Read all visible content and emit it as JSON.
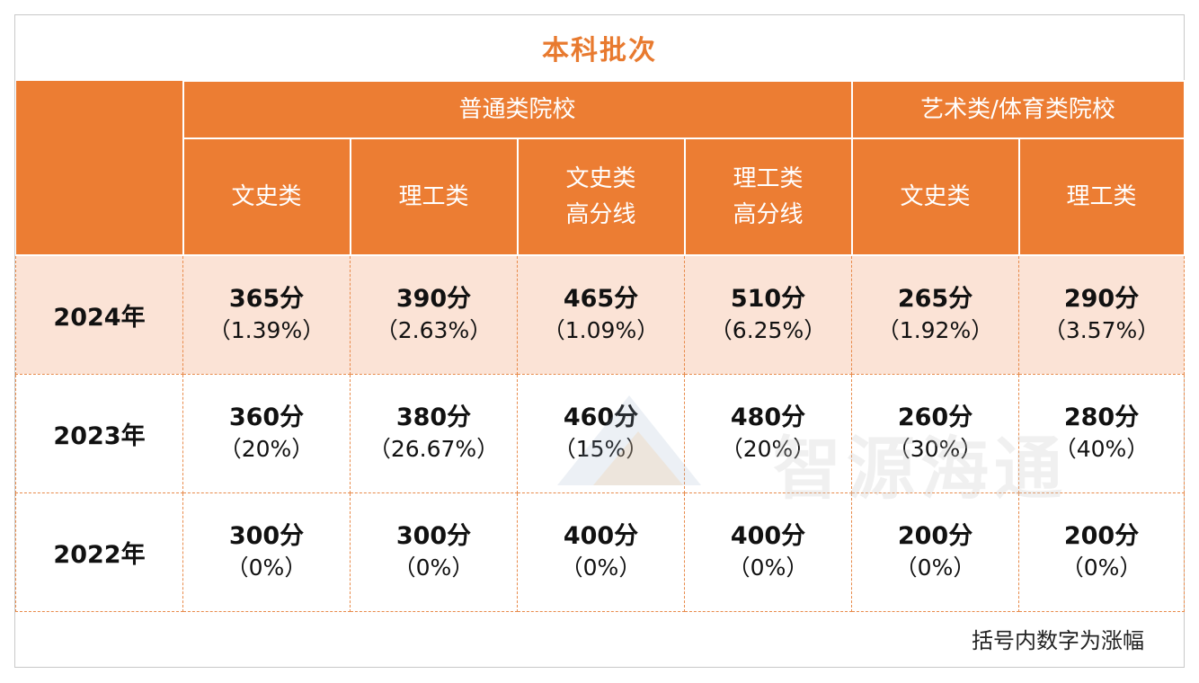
{
  "title": "本科批次",
  "header": {
    "group_general": "普通类院校",
    "group_arts": "艺术类/体育类院校",
    "columns": [
      "文史类",
      "理工类",
      "文史类\n高分线",
      "理工类\n高分线",
      "文史类",
      "理工类"
    ]
  },
  "rows": [
    {
      "year": "2024年",
      "cells": [
        {
          "score": "365分",
          "pct": "（1.39%）"
        },
        {
          "score": "390分",
          "pct": "（2.63%）"
        },
        {
          "score": "465分",
          "pct": "（1.09%）"
        },
        {
          "score": "510分",
          "pct": "（6.25%）"
        },
        {
          "score": "265分",
          "pct": "（1.92%）"
        },
        {
          "score": "290分",
          "pct": "（3.57%）"
        }
      ]
    },
    {
      "year": "2023年",
      "cells": [
        {
          "score": "360分",
          "pct": "（20%）"
        },
        {
          "score": "380分",
          "pct": "（26.67%）"
        },
        {
          "score": "460分",
          "pct": "（15%）"
        },
        {
          "score": "480分",
          "pct": "（20%）"
        },
        {
          "score": "260分",
          "pct": "（30%）"
        },
        {
          "score": "280分",
          "pct": "（40%）"
        }
      ]
    },
    {
      "year": "2022年",
      "cells": [
        {
          "score": "300分",
          "pct": "（0%）"
        },
        {
          "score": "300分",
          "pct": "（0%）"
        },
        {
          "score": "400分",
          "pct": "（0%）"
        },
        {
          "score": "400分",
          "pct": "（0%）"
        },
        {
          "score": "200分",
          "pct": "（0%）"
        },
        {
          "score": "200分",
          "pct": "（0%）"
        }
      ]
    }
  ],
  "footnote": "括号内数字为涨幅",
  "watermark": "智源海通",
  "colors": {
    "accent": "#ec7d33",
    "highlight_row": "#fbe3d6",
    "title": "#e87a2f"
  }
}
